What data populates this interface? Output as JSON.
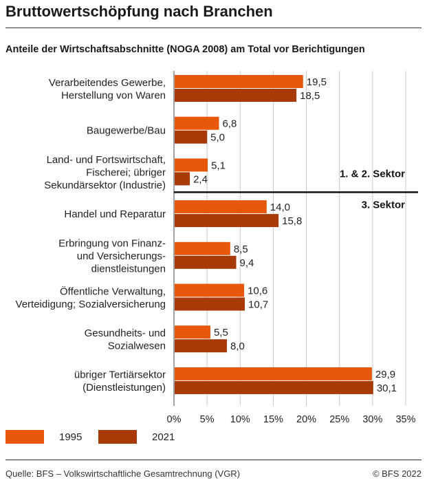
{
  "title": "Bruttowertschöpfung nach Branchen",
  "subtitle": "Anteile der Wirtschaftsabschnitte (NOGA 2008) am Total vor Berichtigungen",
  "chart_data": {
    "type": "bar",
    "orientation": "horizontal",
    "categories": [
      [
        "Verarbeitendes Gewerbe,",
        "Herstellung von Waren"
      ],
      [
        "Baugewerbe/Bau"
      ],
      [
        "Land- und Fortswirtschaft,",
        "Fischerei; übriger",
        "Sekundärsektor (Industrie)"
      ],
      [
        "Handel und Reparatur"
      ],
      [
        "Erbringung von Finanz-",
        "und Versicherungs-",
        "dienstleistungen"
      ],
      [
        "Öffentliche Verwaltung,",
        "Verteidigung; Sozialversicherung"
      ],
      [
        "Gesundheits- und",
        "Sozialwesen"
      ],
      [
        "übriger Tertiärsektor",
        "(Dienstleistungen)"
      ]
    ],
    "series": [
      {
        "name": "1995",
        "color": "#e8580c",
        "values": [
          19.5,
          6.8,
          5.1,
          14.0,
          8.5,
          10.6,
          5.5,
          29.9
        ],
        "labels": [
          "19,5",
          "6,8",
          "5,1",
          "14,0",
          "8,5",
          "10,6",
          "5,5",
          "29,9"
        ]
      },
      {
        "name": "2021",
        "color": "#a83a08",
        "values": [
          18.5,
          5.0,
          2.4,
          15.8,
          9.4,
          10.7,
          8.0,
          30.1
        ],
        "labels": [
          "18,5",
          "5,0",
          "2,4",
          "15,8",
          "9,4",
          "10,7",
          "8,0",
          "30,1"
        ]
      }
    ],
    "xlim": [
      0,
      35
    ],
    "xticks": [
      0,
      5,
      10,
      15,
      20,
      25,
      30,
      35
    ],
    "xtick_labels": [
      "0%",
      "5%",
      "10%",
      "15%",
      "20%",
      "25%",
      "30%",
      "35%"
    ],
    "grid": true,
    "sector_divider": {
      "after_category_index": 2,
      "label_above": "1. & 2. Sektor",
      "label_below": "3. Sektor"
    }
  },
  "legend": [
    {
      "label": "1995",
      "color": "#e8580c"
    },
    {
      "label": "2021",
      "color": "#a83a08"
    }
  ],
  "footer": {
    "source": "Quelle: BFS – Volkswirtschaftliche Gesamtrechnung (VGR)",
    "copyright": "© BFS 2022"
  }
}
